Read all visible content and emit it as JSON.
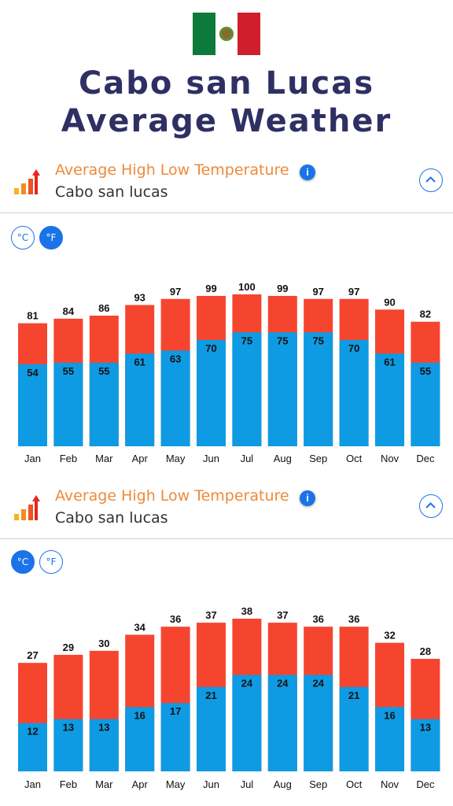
{
  "page": {
    "title_line1": "Cabo san Lucas",
    "title_line2": "Average Weather"
  },
  "flag": {
    "colors": [
      "#0d7a3b",
      "#ffffff",
      "#cf1f2d"
    ]
  },
  "sections": [
    {
      "header": {
        "title": "Average High Low Temperature",
        "subtitle": "Cabo san lucas",
        "info_label": "i"
      },
      "units": {
        "celsius": "°C",
        "fahrenheit": "°F",
        "selected": "fahrenheit"
      }
    },
    {
      "header": {
        "title": "Average High Low Temperature",
        "subtitle": "Cabo san lucas",
        "info_label": "i"
      },
      "units": {
        "celsius": "°C",
        "fahrenheit": "°F",
        "selected": "celsius"
      }
    }
  ],
  "colors": {
    "high": "#f5452f",
    "low": "#0e9be3",
    "accent": "#1a73e8",
    "title": "#2e3064",
    "header_orange": "#ee8a3a"
  },
  "chart_data": [
    {
      "type": "bar",
      "categories": [
        "Jan",
        "Feb",
        "Mar",
        "Apr",
        "May",
        "Jun",
        "Jul",
        "Aug",
        "Sep",
        "Oct",
        "Nov",
        "Dec"
      ],
      "series": [
        {
          "values": [
            81,
            84,
            86,
            93,
            97,
            99,
            100,
            99,
            97,
            97,
            90,
            82
          ]
        },
        {
          "values": [
            54,
            55,
            55,
            61,
            63,
            70,
            75,
            75,
            75,
            70,
            61,
            55
          ]
        }
      ],
      "title": "",
      "xlabel": "",
      "ylabel": "",
      "ylim": [
        0,
        100
      ],
      "grid": false,
      "legend": "none"
    },
    {
      "type": "bar",
      "categories": [
        "Jan",
        "Feb",
        "Mar",
        "Apr",
        "May",
        "Jun",
        "Jul",
        "Aug",
        "Sep",
        "Oct",
        "Nov",
        "Dec"
      ],
      "series": [
        {
          "values": [
            27,
            29,
            30,
            34,
            36,
            37,
            38,
            37,
            36,
            36,
            32,
            28
          ]
        },
        {
          "values": [
            12,
            13,
            13,
            16,
            17,
            21,
            24,
            24,
            24,
            21,
            16,
            13
          ]
        }
      ],
      "title": "",
      "xlabel": "",
      "ylabel": "",
      "ylim": [
        0,
        38
      ],
      "grid": false,
      "legend": "none"
    }
  ]
}
